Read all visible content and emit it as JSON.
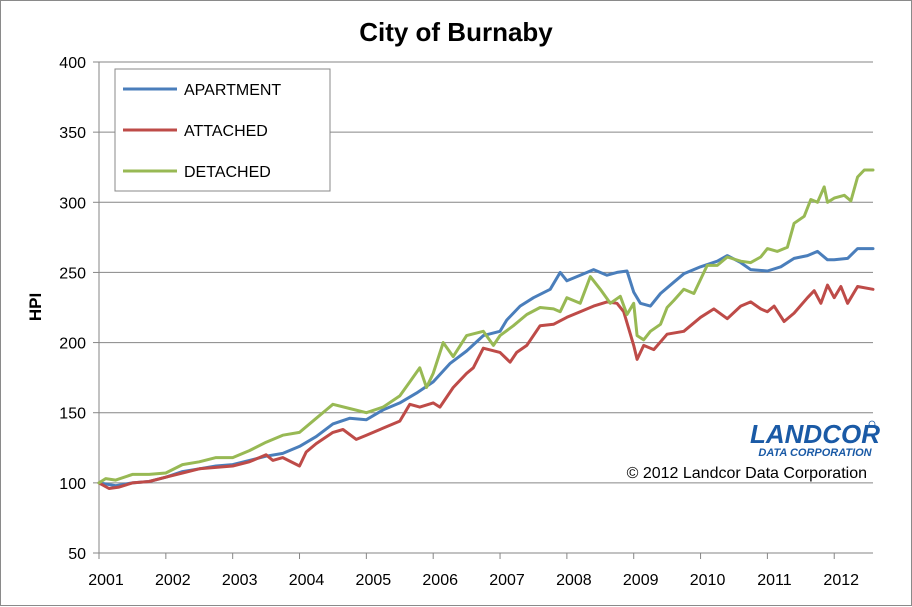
{
  "chart_data": {
    "type": "line",
    "title": "City of Burnaby",
    "ylabel": "HPI",
    "xlabel": "",
    "ylim": [
      50,
      400
    ],
    "xlim": [
      2001,
      2012.58
    ],
    "yticks": [
      "50",
      "100",
      "150",
      "200",
      "250",
      "300",
      "350",
      "400"
    ],
    "xticks": [
      "2001",
      "2002",
      "2003",
      "2004",
      "2005",
      "2006",
      "2007",
      "2008",
      "2009",
      "2010",
      "2011",
      "2012"
    ],
    "grid": "horizontal",
    "legend_position": "top-left",
    "colors": {
      "APARTMENT": "#4a7ebb",
      "ATTACHED": "#be4b48",
      "DETACHED": "#98b954"
    },
    "series": [
      {
        "name": "APARTMENT",
        "points": [
          [
            2001,
            100
          ],
          [
            2001.25,
            98
          ],
          [
            2001.5,
            100
          ],
          [
            2001.75,
            101
          ],
          [
            2002,
            104
          ],
          [
            2002.25,
            108
          ],
          [
            2002.5,
            110
          ],
          [
            2002.75,
            112
          ],
          [
            2003,
            113
          ],
          [
            2003.25,
            116
          ],
          [
            2003.5,
            119
          ],
          [
            2003.75,
            121
          ],
          [
            2004,
            126
          ],
          [
            2004.25,
            133
          ],
          [
            2004.5,
            142
          ],
          [
            2004.75,
            146
          ],
          [
            2005,
            145
          ],
          [
            2005.25,
            152
          ],
          [
            2005.5,
            157
          ],
          [
            2005.75,
            164
          ],
          [
            2006,
            172
          ],
          [
            2006.25,
            185
          ],
          [
            2006.5,
            194
          ],
          [
            2006.75,
            205
          ],
          [
            2007,
            208
          ],
          [
            2007.1,
            216
          ],
          [
            2007.3,
            226
          ],
          [
            2007.5,
            232
          ],
          [
            2007.75,
            238
          ],
          [
            2007.9,
            250
          ],
          [
            2008,
            244
          ],
          [
            2008.2,
            248
          ],
          [
            2008.4,
            252
          ],
          [
            2008.6,
            248
          ],
          [
            2008.75,
            250
          ],
          [
            2008.9,
            251
          ],
          [
            2009,
            236
          ],
          [
            2009.1,
            228
          ],
          [
            2009.25,
            226
          ],
          [
            2009.4,
            235
          ],
          [
            2009.6,
            243
          ],
          [
            2009.75,
            249
          ],
          [
            2010,
            254
          ],
          [
            2010.25,
            258
          ],
          [
            2010.4,
            262
          ],
          [
            2010.6,
            257
          ],
          [
            2010.75,
            252
          ],
          [
            2011,
            251
          ],
          [
            2011.2,
            254
          ],
          [
            2011.4,
            260
          ],
          [
            2011.6,
            262
          ],
          [
            2011.75,
            265
          ],
          [
            2011.9,
            259
          ],
          [
            2012,
            259
          ],
          [
            2012.2,
            260
          ],
          [
            2012.35,
            267
          ],
          [
            2012.58,
            267
          ]
        ]
      },
      {
        "name": "ATTACHED",
        "points": [
          [
            2001,
            100
          ],
          [
            2001.15,
            96
          ],
          [
            2001.3,
            97
          ],
          [
            2001.5,
            100
          ],
          [
            2001.75,
            101
          ],
          [
            2002,
            104
          ],
          [
            2002.25,
            107
          ],
          [
            2002.5,
            110
          ],
          [
            2002.75,
            111
          ],
          [
            2003,
            112
          ],
          [
            2003.25,
            115
          ],
          [
            2003.5,
            120
          ],
          [
            2003.6,
            116
          ],
          [
            2003.75,
            118
          ],
          [
            2004,
            112
          ],
          [
            2004.1,
            122
          ],
          [
            2004.25,
            128
          ],
          [
            2004.5,
            136
          ],
          [
            2004.65,
            138
          ],
          [
            2004.85,
            131
          ],
          [
            2005,
            134
          ],
          [
            2005.25,
            139
          ],
          [
            2005.5,
            144
          ],
          [
            2005.65,
            156
          ],
          [
            2005.8,
            154
          ],
          [
            2006,
            157
          ],
          [
            2006.1,
            154
          ],
          [
            2006.3,
            168
          ],
          [
            2006.5,
            178
          ],
          [
            2006.6,
            182
          ],
          [
            2006.75,
            196
          ],
          [
            2007,
            193
          ],
          [
            2007.15,
            186
          ],
          [
            2007.25,
            193
          ],
          [
            2007.4,
            198
          ],
          [
            2007.6,
            212
          ],
          [
            2007.8,
            213
          ],
          [
            2008,
            218
          ],
          [
            2008.2,
            222
          ],
          [
            2008.4,
            226
          ],
          [
            2008.6,
            229
          ],
          [
            2008.75,
            228
          ],
          [
            2008.85,
            222
          ],
          [
            2009,
            198
          ],
          [
            2009.05,
            188
          ],
          [
            2009.15,
            198
          ],
          [
            2009.3,
            195
          ],
          [
            2009.5,
            206
          ],
          [
            2009.75,
            208
          ],
          [
            2010,
            218
          ],
          [
            2010.2,
            224
          ],
          [
            2010.4,
            217
          ],
          [
            2010.6,
            226
          ],
          [
            2010.75,
            229
          ],
          [
            2010.9,
            224
          ],
          [
            2011,
            222
          ],
          [
            2011.1,
            226
          ],
          [
            2011.25,
            215
          ],
          [
            2011.4,
            221
          ],
          [
            2011.6,
            232
          ],
          [
            2011.7,
            237
          ],
          [
            2011.8,
            228
          ],
          [
            2011.9,
            241
          ],
          [
            2012,
            232
          ],
          [
            2012.1,
            240
          ],
          [
            2012.2,
            228
          ],
          [
            2012.35,
            240
          ],
          [
            2012.58,
            238
          ]
        ]
      },
      {
        "name": "DETACHED",
        "points": [
          [
            2001,
            100
          ],
          [
            2001.1,
            103
          ],
          [
            2001.25,
            102
          ],
          [
            2001.5,
            106
          ],
          [
            2001.75,
            106
          ],
          [
            2002,
            107
          ],
          [
            2002.25,
            113
          ],
          [
            2002.5,
            115
          ],
          [
            2002.75,
            118
          ],
          [
            2003,
            118
          ],
          [
            2003.25,
            123
          ],
          [
            2003.5,
            129
          ],
          [
            2003.75,
            134
          ],
          [
            2004,
            136
          ],
          [
            2004.25,
            146
          ],
          [
            2004.4,
            152
          ],
          [
            2004.5,
            156
          ],
          [
            2004.75,
            153
          ],
          [
            2005,
            150
          ],
          [
            2005.25,
            154
          ],
          [
            2005.5,
            162
          ],
          [
            2005.65,
            172
          ],
          [
            2005.8,
            182
          ],
          [
            2005.9,
            168
          ],
          [
            2006,
            178
          ],
          [
            2006.15,
            200
          ],
          [
            2006.3,
            190
          ],
          [
            2006.5,
            205
          ],
          [
            2006.75,
            208
          ],
          [
            2006.9,
            198
          ],
          [
            2007,
            205
          ],
          [
            2007.2,
            212
          ],
          [
            2007.4,
            220
          ],
          [
            2007.6,
            225
          ],
          [
            2007.8,
            224
          ],
          [
            2007.9,
            222
          ],
          [
            2008,
            232
          ],
          [
            2008.2,
            228
          ],
          [
            2008.35,
            247
          ],
          [
            2008.5,
            238
          ],
          [
            2008.65,
            228
          ],
          [
            2008.8,
            233
          ],
          [
            2008.9,
            220
          ],
          [
            2009,
            228
          ],
          [
            2009.05,
            205
          ],
          [
            2009.15,
            202
          ],
          [
            2009.25,
            208
          ],
          [
            2009.4,
            213
          ],
          [
            2009.5,
            225
          ],
          [
            2009.6,
            230
          ],
          [
            2009.75,
            238
          ],
          [
            2009.9,
            235
          ],
          [
            2010,
            245
          ],
          [
            2010.1,
            255
          ],
          [
            2010.25,
            255
          ],
          [
            2010.4,
            261
          ],
          [
            2010.6,
            258
          ],
          [
            2010.75,
            257
          ],
          [
            2010.9,
            261
          ],
          [
            2011,
            267
          ],
          [
            2011.15,
            265
          ],
          [
            2011.3,
            268
          ],
          [
            2011.4,
            285
          ],
          [
            2011.55,
            290
          ],
          [
            2011.65,
            302
          ],
          [
            2011.75,
            300
          ],
          [
            2011.85,
            311
          ],
          [
            2011.9,
            300
          ],
          [
            2012,
            303
          ],
          [
            2012.15,
            305
          ],
          [
            2012.25,
            301
          ],
          [
            2012.35,
            318
          ],
          [
            2012.45,
            323
          ],
          [
            2012.58,
            323
          ]
        ]
      }
    ]
  },
  "branding": {
    "logo_text": "LANDCOR",
    "logo_subtext": "DATA CORPORATION",
    "copyright": "© 2012 Landcor Data Corporation"
  }
}
